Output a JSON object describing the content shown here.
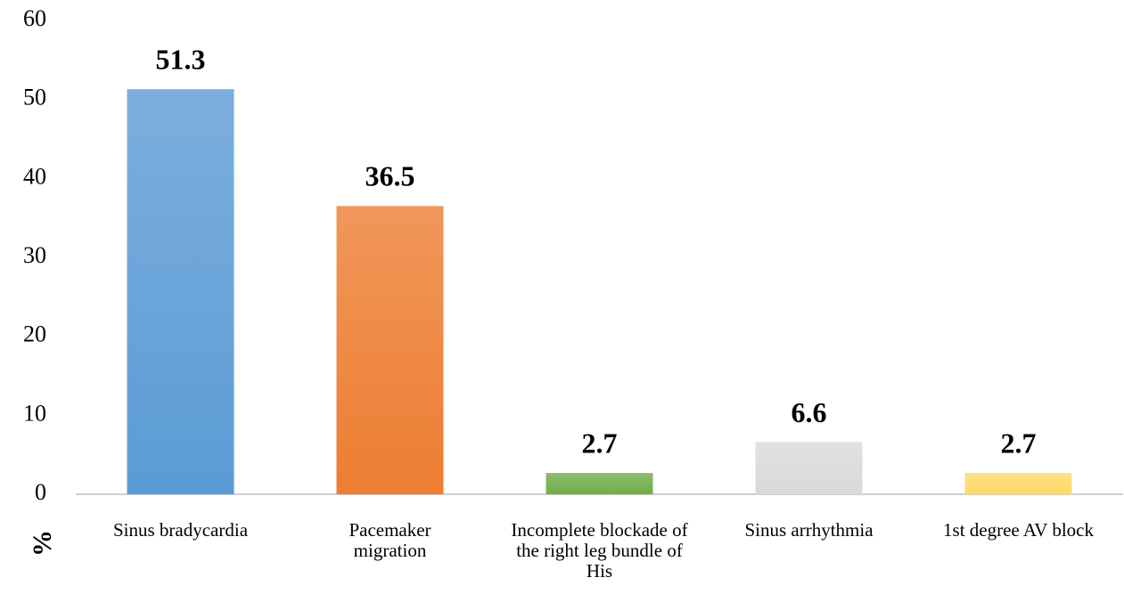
{
  "chart_data": {
    "type": "bar",
    "y_label": "%",
    "categories": [
      "Sinus bradycardia",
      "Pacemaker migration",
      "Incomplete blockade of the right leg bundle of His",
      "Sinus arrhythmia",
      "1st degree AV block"
    ],
    "values": [
      51.3,
      36.5,
      2.7,
      6.6,
      2.7
    ],
    "colors": [
      "#5b9bd5",
      "#ed7d31",
      "#70ad47",
      "#d9d9d9",
      "#ffd966"
    ],
    "ylim": [
      0,
      60
    ],
    "yticks": [
      0,
      10,
      20,
      30,
      40,
      50,
      60
    ],
    "grid": false
  }
}
